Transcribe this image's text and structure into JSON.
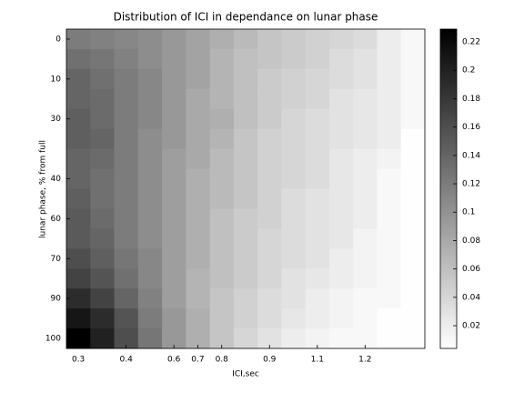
{
  "chart_data": {
    "type": "heatmap",
    "title": "Distribution of ICI in dependance on lunar phase",
    "xlabel": "ICI,sec",
    "ylabel": "lunar phase, % from full",
    "x_categories": [
      "0.3",
      null,
      "0.4",
      null,
      "0.6",
      "0.7",
      "0.8",
      null,
      "0.9",
      null,
      "1.1",
      null,
      "1.2",
      null,
      null
    ],
    "y_categories": [
      "0",
      null,
      "10",
      null,
      "30",
      null,
      null,
      "40",
      null,
      "60",
      null,
      "70",
      null,
      "90",
      null,
      "100"
    ],
    "colormap": "gray_reversed",
    "clim": [
      0.004,
      0.229
    ],
    "cticks": [
      0.02,
      0.04,
      0.06,
      0.08,
      0.1,
      0.12,
      0.14,
      0.16,
      0.18,
      0.2,
      0.22
    ],
    "values": [
      [
        0.12,
        0.115,
        0.11,
        0.105,
        0.095,
        0.085,
        0.075,
        0.065,
        0.055,
        0.05,
        0.045,
        0.04,
        0.035,
        0.02,
        0.01
      ],
      [
        0.13,
        0.125,
        0.115,
        0.105,
        0.095,
        0.085,
        0.07,
        0.06,
        0.055,
        0.05,
        0.045,
        0.035,
        0.03,
        0.02,
        0.01
      ],
      [
        0.14,
        0.13,
        0.12,
        0.11,
        0.095,
        0.085,
        0.07,
        0.06,
        0.05,
        0.045,
        0.04,
        0.035,
        0.03,
        0.02,
        0.01
      ],
      [
        0.14,
        0.135,
        0.12,
        0.11,
        0.095,
        0.08,
        0.07,
        0.06,
        0.05,
        0.045,
        0.04,
        0.03,
        0.025,
        0.02,
        0.01
      ],
      [
        0.145,
        0.135,
        0.12,
        0.11,
        0.095,
        0.08,
        0.075,
        0.06,
        0.05,
        0.04,
        0.035,
        0.03,
        0.025,
        0.02,
        0.01
      ],
      [
        0.145,
        0.14,
        0.12,
        0.105,
        0.095,
        0.08,
        0.07,
        0.055,
        0.045,
        0.04,
        0.035,
        0.03,
        0.025,
        0.02,
        0.005
      ],
      [
        0.14,
        0.135,
        0.12,
        0.105,
        0.09,
        0.08,
        0.065,
        0.055,
        0.045,
        0.04,
        0.035,
        0.025,
        0.02,
        0.015,
        0.005
      ],
      [
        0.14,
        0.13,
        0.12,
        0.105,
        0.09,
        0.075,
        0.065,
        0.055,
        0.045,
        0.04,
        0.035,
        0.025,
        0.02,
        0.01,
        0.005
      ],
      [
        0.145,
        0.13,
        0.12,
        0.105,
        0.09,
        0.075,
        0.065,
        0.055,
        0.045,
        0.035,
        0.03,
        0.025,
        0.02,
        0.01,
        0.005
      ],
      [
        0.15,
        0.135,
        0.12,
        0.105,
        0.09,
        0.075,
        0.06,
        0.05,
        0.045,
        0.035,
        0.03,
        0.025,
        0.02,
        0.01,
        0.005
      ],
      [
        0.15,
        0.14,
        0.12,
        0.105,
        0.09,
        0.075,
        0.06,
        0.05,
        0.04,
        0.035,
        0.03,
        0.025,
        0.015,
        0.01,
        0.005
      ],
      [
        0.16,
        0.145,
        0.125,
        0.11,
        0.09,
        0.075,
        0.06,
        0.05,
        0.04,
        0.035,
        0.03,
        0.02,
        0.015,
        0.01,
        0.005
      ],
      [
        0.17,
        0.155,
        0.13,
        0.11,
        0.09,
        0.07,
        0.06,
        0.05,
        0.04,
        0.03,
        0.025,
        0.02,
        0.015,
        0.01,
        0.005
      ],
      [
        0.19,
        0.17,
        0.14,
        0.115,
        0.09,
        0.07,
        0.055,
        0.045,
        0.035,
        0.03,
        0.02,
        0.015,
        0.01,
        0.01,
        0.005
      ],
      [
        0.21,
        0.19,
        0.155,
        0.12,
        0.095,
        0.075,
        0.055,
        0.045,
        0.035,
        0.025,
        0.02,
        0.015,
        0.01,
        0.005,
        0.005
      ],
      [
        0.23,
        0.2,
        0.16,
        0.125,
        0.095,
        0.075,
        0.055,
        0.04,
        0.03,
        0.02,
        0.015,
        0.01,
        0.01,
        0.005,
        0.005
      ]
    ]
  }
}
